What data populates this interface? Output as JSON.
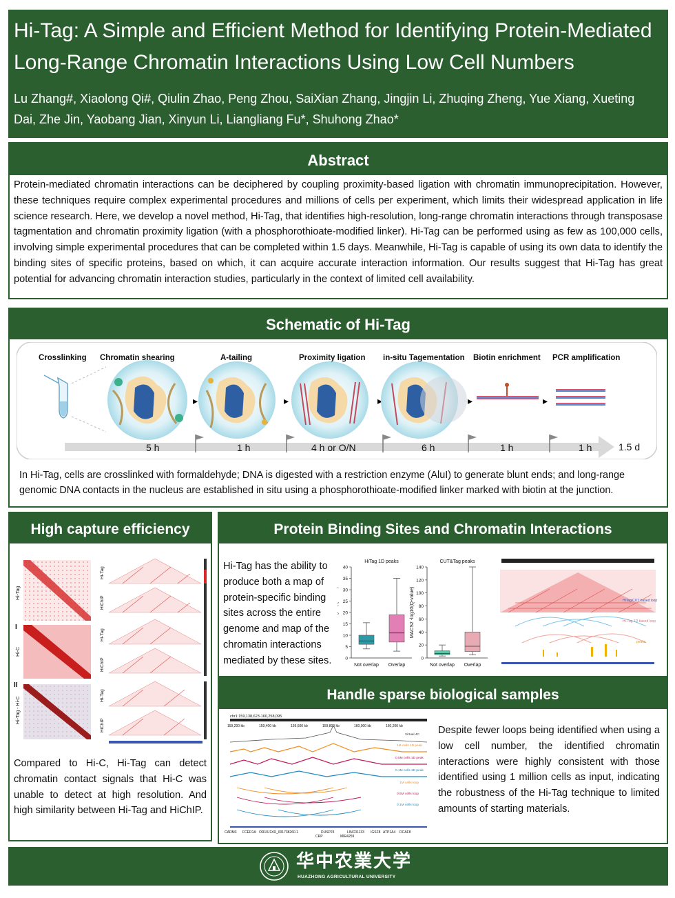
{
  "header": {
    "title_line1": "Hi-Tag: A Simple and Efficient Method for Identifying Protein-Mediated",
    "title_line2": "Long-Range Chromatin Interactions Using Low Cell Numbers",
    "authors_line1": "Lu Zhang#, Xiaolong Qi#, Qiulin Zhao, Peng Zhou, SaiXian Zhang, Jingjin Li, Zhuqing Zheng, Yue Xiang, Xueting",
    "authors_line2": "Dai, Zhe Jin, Yaobang Jian, Xinyun Li, Liangliang Fu*, Shuhong Zhao*"
  },
  "abstract": {
    "heading": "Abstract",
    "text": "Protein-mediated chromatin interactions can be deciphered by coupling proximity-based ligation with chromatin immunoprecipitation. However, these techniques require complex experimental procedures and millions of cells per experiment, which limits their widespread application in life science research. Here, we develop a novel method, Hi-Tag, that identifies high-resolution, long-range chromatin interactions through transposase tagmentation and chromatin proximity ligation (with a phosphorothioate-modified linker). Hi-Tag can be performed using as few as 100,000 cells, involving simple experimental procedures that can be completed within 1.5 days. Meanwhile, Hi-Tag is capable of using its own data to identify the binding sites of specific proteins, based on which, it can acquire accurate interaction information. Our results suggest that Hi-Tag has great potential for advancing chromatin interaction studies, particularly in the context of limited cell availability."
  },
  "schematic": {
    "heading": "Schematic of Hi-Tag",
    "steps": [
      "Crosslinking",
      "Chromatin shearing",
      "A-tailing",
      "Proximity ligation",
      "in-situ Tagementation",
      "Biotin enrichment",
      "PCR amplification"
    ],
    "times": [
      "5 h",
      "1 h",
      "4 h or O/N",
      "6 h",
      "1 h",
      "1 h"
    ],
    "total": "1.5 d",
    "caption": "In Hi-Tag, cells are crosslinked with formaldehyde; DNA is digested with a restriction enzyme (AluI) to generate blunt ends; and long-range genomic DNA contacts in the nucleus are established in situ using a phosphorothioate-modified linker marked with biotin at the junction."
  },
  "capture": {
    "heading": "High capture efficiency",
    "map_labels": [
      "Hi-Tag",
      "Hi-C",
      "Hi-Tag - Hi-C"
    ],
    "roman": [
      "I",
      "II"
    ],
    "track_labels": [
      "Hi-Tag",
      "HiChIP",
      "Hi-Tag",
      "HiChIP",
      "Hi-Tag",
      "HiChIP"
    ],
    "text": "Compared to Hi-C, Hi-Tag can detect chromatin contact signals that Hi-C was unable to detect at high resolution. And high similarity between Hi-Tag and HiChIP."
  },
  "binding": {
    "heading": "Protein Binding Sites and Chromatin Interactions",
    "text": "Hi-Tag has the ability to produce both a map of protein-specific binding sites across the entire genome and map of the chromatin interactions mediated by these sites.",
    "track_legend": [
      "HiTag/CUT based loop",
      "Hi-Tag 1D based loop",
      "peaks"
    ]
  },
  "sparse": {
    "heading": "Handle sparse biological samples",
    "text": "Despite fewer loops being identified when using a low cell number, the identified chromatin interactions were highly consistent with those identified using 1 million cells as input, indicating the robustness of the Hi-Tag technique to limited amounts of starting materials.",
    "coord": "chr1:159,138,623-160,258,095",
    "ticks": [
      "159,200 kb",
      "159,400 kb",
      "159,600 kb",
      "159,800 kb",
      "160,000 kb",
      "160,200 kb"
    ],
    "track_labels": [
      "Virtual 4C",
      "1M cells 1D peak",
      "0.5M cells 1D peak",
      "0.1M cells 1D peak",
      "1M cells loop",
      "0.5M cells loop",
      "0.1M cells loop"
    ],
    "genes": [
      "CADM3",
      "FCER1A",
      "OR10J1",
      "XR_001738260.1",
      "DUSP23",
      "CRP",
      "LINC01133",
      "MIR4259",
      "IGSF8",
      "ATP1A4",
      "DCAF8"
    ]
  },
  "footer": {
    "logo_cn": "华中农業大学",
    "logo_en": "HUAZHONG AGRICULTURAL UNIVERSITY"
  },
  "chart_data": [
    {
      "type": "box",
      "title": "HiTag 1D peaks",
      "ylabel": "MACS2 -log10(Q-value)",
      "categories": [
        "Not overlap",
        "Overlap"
      ],
      "ylim": [
        0,
        40
      ],
      "boxes": [
        {
          "min": 4,
          "q1": 6,
          "median": 7.5,
          "q3": 10,
          "max": 15.5,
          "color": "#2e9aa6"
        },
        {
          "min": 3,
          "q1": 7,
          "median": 11,
          "q3": 19,
          "max": 35,
          "color": "#e27fb4"
        }
      ]
    },
    {
      "type": "box",
      "title": "CUT&Tag peaks",
      "ylabel": "MACS2 -log10(Q-value)",
      "categories": [
        "Not overlap",
        "Overlap"
      ],
      "ylim": [
        0,
        140
      ],
      "boxes": [
        {
          "min": 3,
          "q1": 5,
          "median": 7,
          "q3": 11,
          "max": 20,
          "color": "#5fc4a8"
        },
        {
          "min": 5,
          "q1": 10,
          "median": 18,
          "q3": 40,
          "max": 140,
          "color": "#e8aab3"
        }
      ]
    }
  ]
}
